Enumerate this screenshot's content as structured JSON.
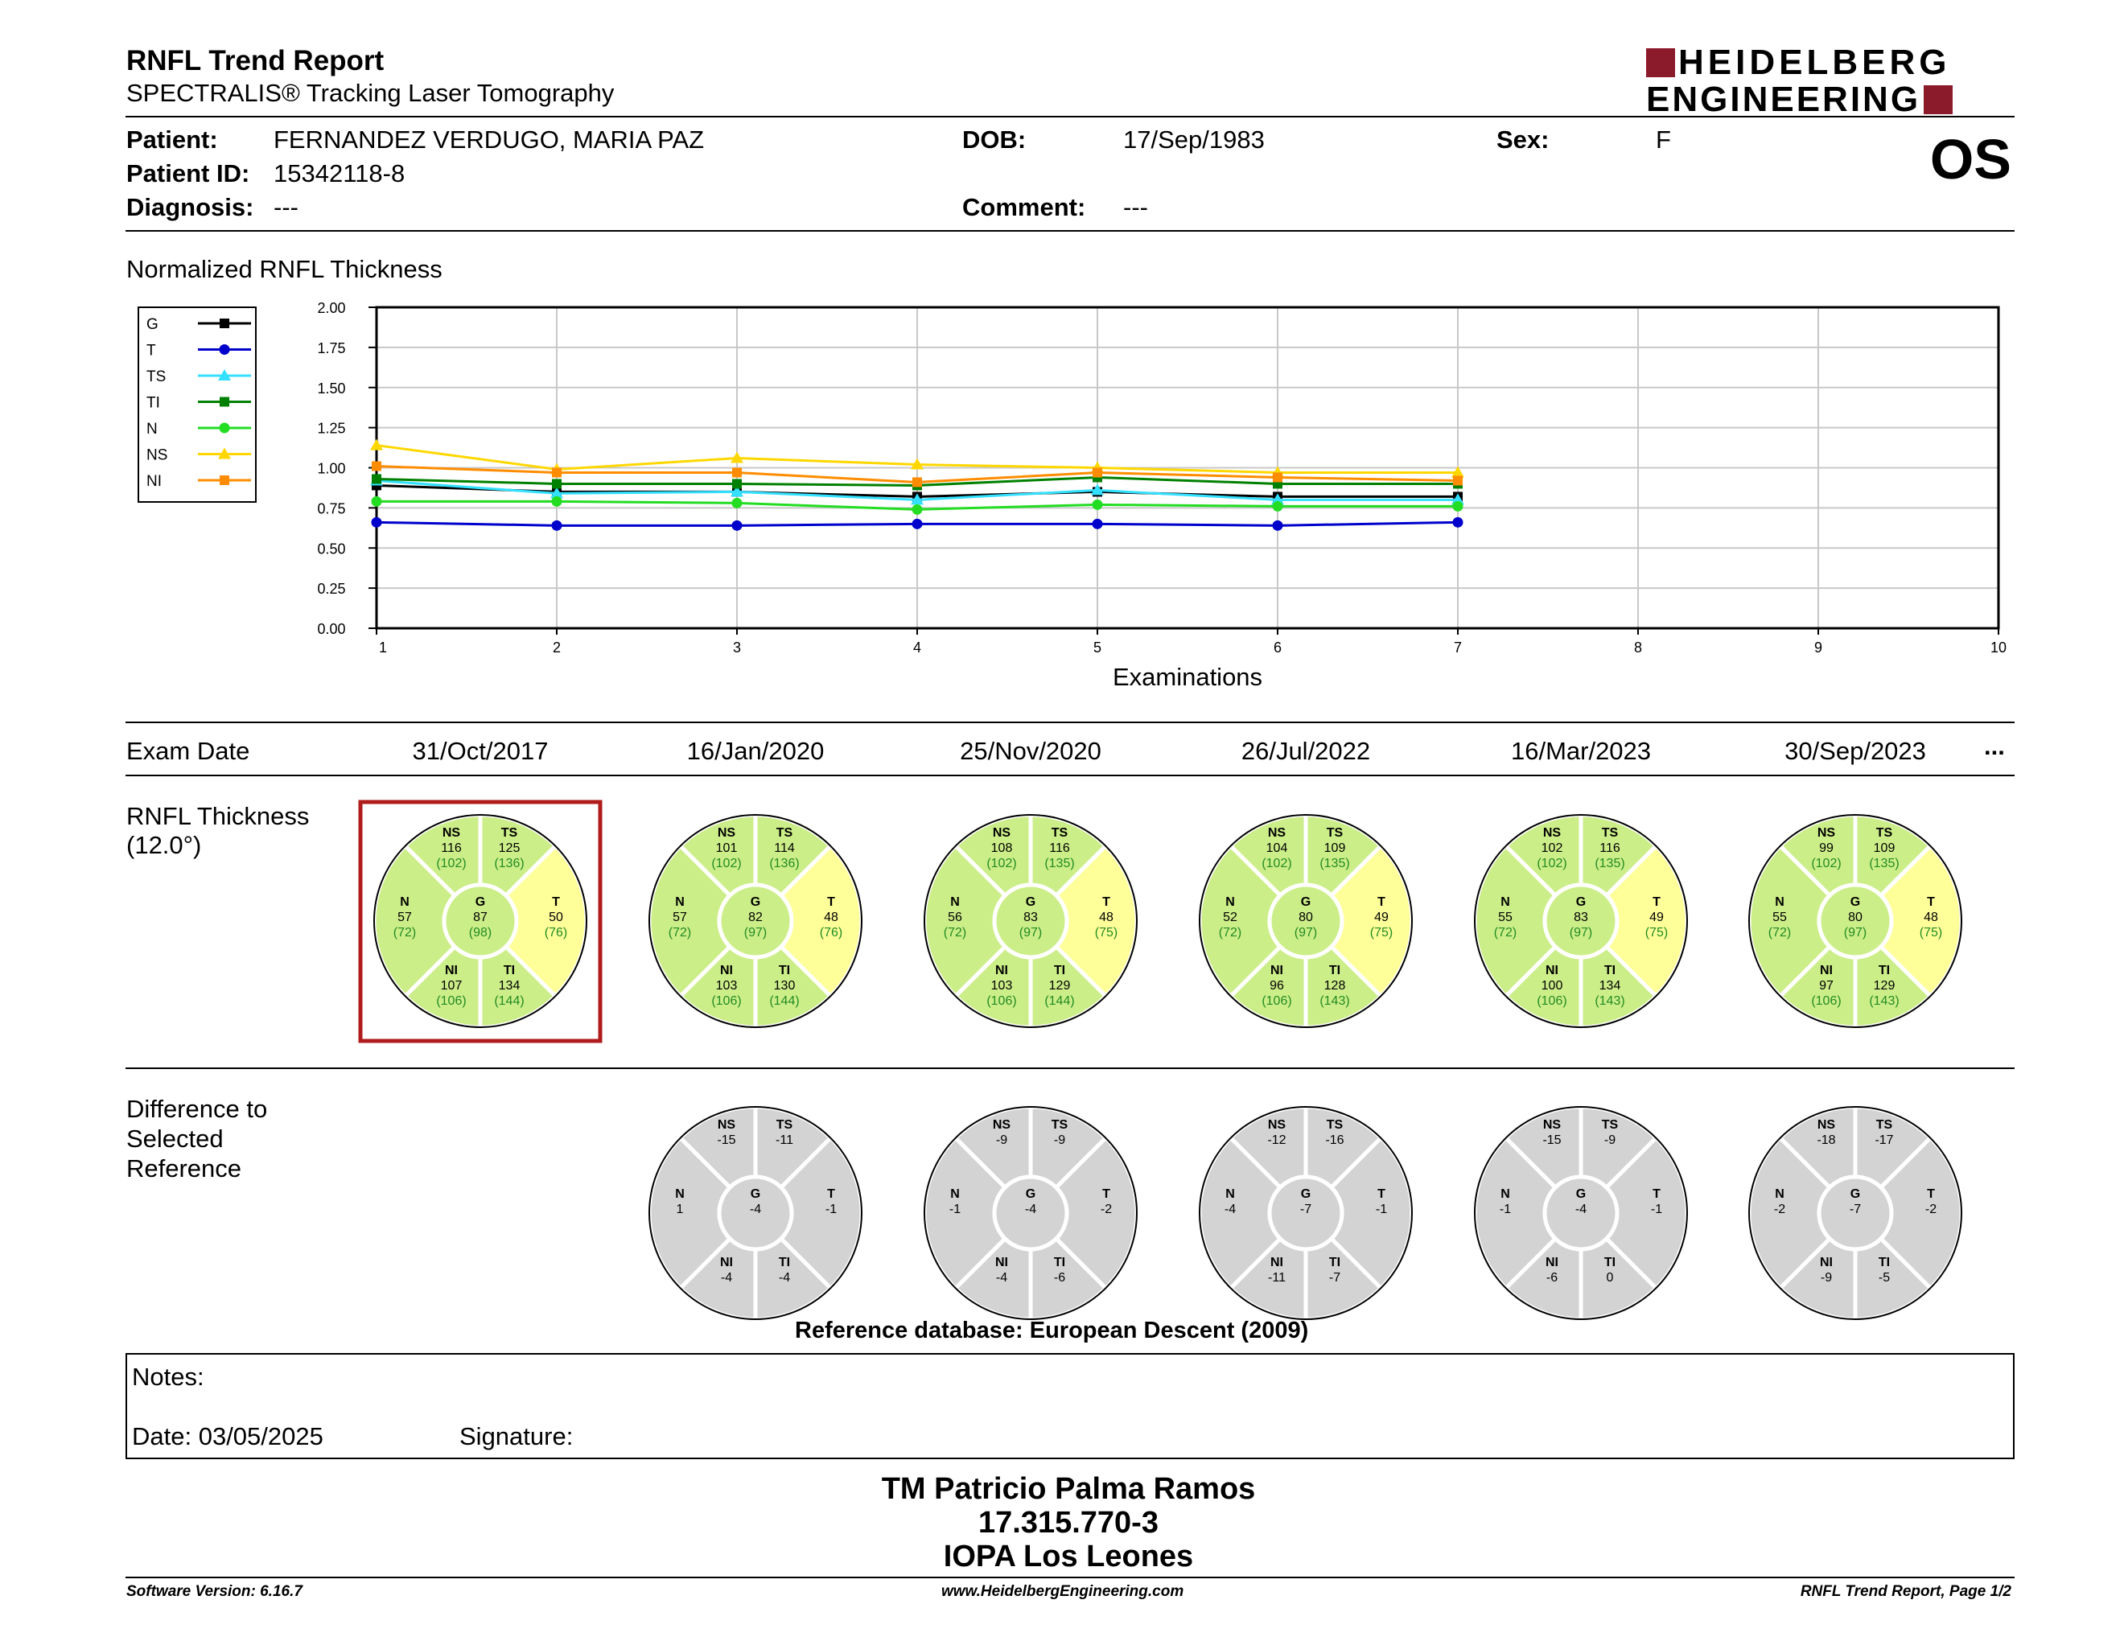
{
  "header": {
    "title": "RNFL Trend Report",
    "subtitle": "SPECTRALIS® Tracking Laser Tomography",
    "logo_line1": "HEIDELBERG",
    "logo_line2": "ENGINEERING",
    "logo_color": "#8b1a2b",
    "eye": "OS"
  },
  "patient": {
    "name_label": "Patient:",
    "name": "FERNANDEZ VERDUGO, MARIA PAZ",
    "id_label": "Patient ID:",
    "id": "15342118-8",
    "diagnosis_label": "Diagnosis:",
    "diagnosis": "---",
    "dob_label": "DOB:",
    "dob": "17/Sep/1983",
    "comment_label": "Comment:",
    "comment": "---",
    "sex_label": "Sex:",
    "sex": "F"
  },
  "chart_data": {
    "type": "line",
    "title": "Normalized RNFL Thickness",
    "xlabel": "Examinations",
    "ylabel": "",
    "xlim": [
      1,
      10
    ],
    "ylim": [
      0,
      2
    ],
    "x_ticks": [
      "1",
      "2",
      "3",
      "4",
      "5",
      "6",
      "7",
      "8",
      "9",
      "10"
    ],
    "y_ticks": [
      "0.00",
      "0.25",
      "0.50",
      "0.75",
      "1.00",
      "1.25",
      "1.50",
      "1.75",
      "2.00"
    ],
    "grid": true,
    "legend_position": "left",
    "x": [
      1,
      2,
      3,
      4,
      5,
      6,
      7
    ],
    "series": [
      {
        "name": "G",
        "color": "#000000",
        "marker": "square",
        "values": [
          0.89,
          0.85,
          0.85,
          0.82,
          0.85,
          0.82,
          0.82
        ]
      },
      {
        "name": "T",
        "color": "#0000cc",
        "marker": "circle",
        "values": [
          0.66,
          0.64,
          0.64,
          0.65,
          0.65,
          0.64,
          0.66
        ]
      },
      {
        "name": "TS",
        "color": "#33e0ff",
        "marker": "triangle",
        "values": [
          0.92,
          0.84,
          0.85,
          0.8,
          0.86,
          0.8,
          0.8
        ]
      },
      {
        "name": "TI",
        "color": "#008000",
        "marker": "square",
        "values": [
          0.93,
          0.9,
          0.9,
          0.89,
          0.94,
          0.9,
          0.9
        ]
      },
      {
        "name": "N",
        "color": "#22dd22",
        "marker": "circle",
        "values": [
          0.79,
          0.79,
          0.78,
          0.74,
          0.77,
          0.76,
          0.76
        ]
      },
      {
        "name": "NS",
        "color": "#ffd700",
        "marker": "triangle",
        "values": [
          1.14,
          0.99,
          1.06,
          1.02,
          1.0,
          0.97,
          0.97
        ]
      },
      {
        "name": "NI",
        "color": "#ff8c00",
        "marker": "square",
        "values": [
          1.01,
          0.97,
          0.97,
          0.91,
          0.97,
          0.94,
          0.92
        ]
      }
    ]
  },
  "exams": {
    "label": "Exam Date",
    "dates": [
      "31/Oct/2017",
      "16/Jan/2020",
      "25/Nov/2020",
      "26/Jul/2022",
      "16/Mar/2023",
      "30/Sep/2023"
    ],
    "more": "..."
  },
  "thickness": {
    "label_line1": "RNFL Thickness",
    "label_line2": "(12.0°)",
    "colors": {
      "green": "#ccee88",
      "yellow": "#ffff99",
      "values_ref": "#228b22",
      "selected_border": "#b01c1c"
    },
    "circles": [
      {
        "NS": "116",
        "NS_ref": "(102)",
        "TS": "125",
        "TS_ref": "(136)",
        "N": "57",
        "N_ref": "(72)",
        "G": "87",
        "G_ref": "(98)",
        "T": "50",
        "T_ref": "(76)",
        "NI": "107",
        "NI_ref": "(106)",
        "TI": "134",
        "TI_ref": "(144)"
      },
      {
        "NS": "101",
        "NS_ref": "(102)",
        "TS": "114",
        "TS_ref": "(136)",
        "N": "57",
        "N_ref": "(72)",
        "G": "82",
        "G_ref": "(97)",
        "T": "48",
        "T_ref": "(76)",
        "NI": "103",
        "NI_ref": "(106)",
        "TI": "130",
        "TI_ref": "(144)"
      },
      {
        "NS": "108",
        "NS_ref": "(102)",
        "TS": "116",
        "TS_ref": "(135)",
        "N": "56",
        "N_ref": "(72)",
        "G": "83",
        "G_ref": "(97)",
        "T": "48",
        "T_ref": "(75)",
        "NI": "103",
        "NI_ref": "(106)",
        "TI": "129",
        "TI_ref": "(144)"
      },
      {
        "NS": "104",
        "NS_ref": "(102)",
        "TS": "109",
        "TS_ref": "(135)",
        "N": "52",
        "N_ref": "(72)",
        "G": "80",
        "G_ref": "(97)",
        "T": "49",
        "T_ref": "(75)",
        "NI": "96",
        "NI_ref": "(106)",
        "TI": "128",
        "TI_ref": "(143)"
      },
      {
        "NS": "102",
        "NS_ref": "(102)",
        "TS": "116",
        "TS_ref": "(135)",
        "N": "55",
        "N_ref": "(72)",
        "G": "83",
        "G_ref": "(97)",
        "T": "49",
        "T_ref": "(75)",
        "NI": "100",
        "NI_ref": "(106)",
        "TI": "134",
        "TI_ref": "(143)"
      },
      {
        "NS": "99",
        "NS_ref": "(102)",
        "TS": "109",
        "TS_ref": "(135)",
        "N": "55",
        "N_ref": "(72)",
        "G": "80",
        "G_ref": "(97)",
        "T": "48",
        "T_ref": "(75)",
        "NI": "97",
        "NI_ref": "(106)",
        "TI": "129",
        "TI_ref": "(143)"
      }
    ]
  },
  "difference": {
    "label_line1": "Difference to",
    "label_line2": "Selected",
    "label_line3": "Reference",
    "circles": [
      {
        "NS": "-15",
        "TS": "-11",
        "N": "1",
        "G": "-4",
        "T": "-1",
        "NI": "-4",
        "TI": "-4"
      },
      {
        "NS": "-9",
        "TS": "-9",
        "N": "-1",
        "G": "-4",
        "T": "-2",
        "NI": "-4",
        "TI": "-6"
      },
      {
        "NS": "-12",
        "TS": "-16",
        "N": "-4",
        "G": "-7",
        "T": "-1",
        "NI": "-11",
        "TI": "-7"
      },
      {
        "NS": "-15",
        "TS": "-9",
        "N": "-1",
        "G": "-4",
        "T": "-1",
        "NI": "-6",
        "TI": "0"
      },
      {
        "NS": "-18",
        "TS": "-17",
        "N": "-2",
        "G": "-7",
        "T": "-2",
        "NI": "-9",
        "TI": "-5"
      }
    ],
    "reference_db": "Reference database: European Descent (2009)"
  },
  "notes": {
    "label": "Notes:",
    "date": "Date: 03/05/2025",
    "signature": "Signature:"
  },
  "signer": {
    "name": "TM Patricio Palma Ramos",
    "rut": "17.315.770-3",
    "clinic": "IOPA Los Leones"
  },
  "footer": {
    "version": "Software Version: 6.16.7",
    "website": "www.HeidelbergEngineering.com",
    "page": "RNFL Trend Report, Page 1/2"
  }
}
